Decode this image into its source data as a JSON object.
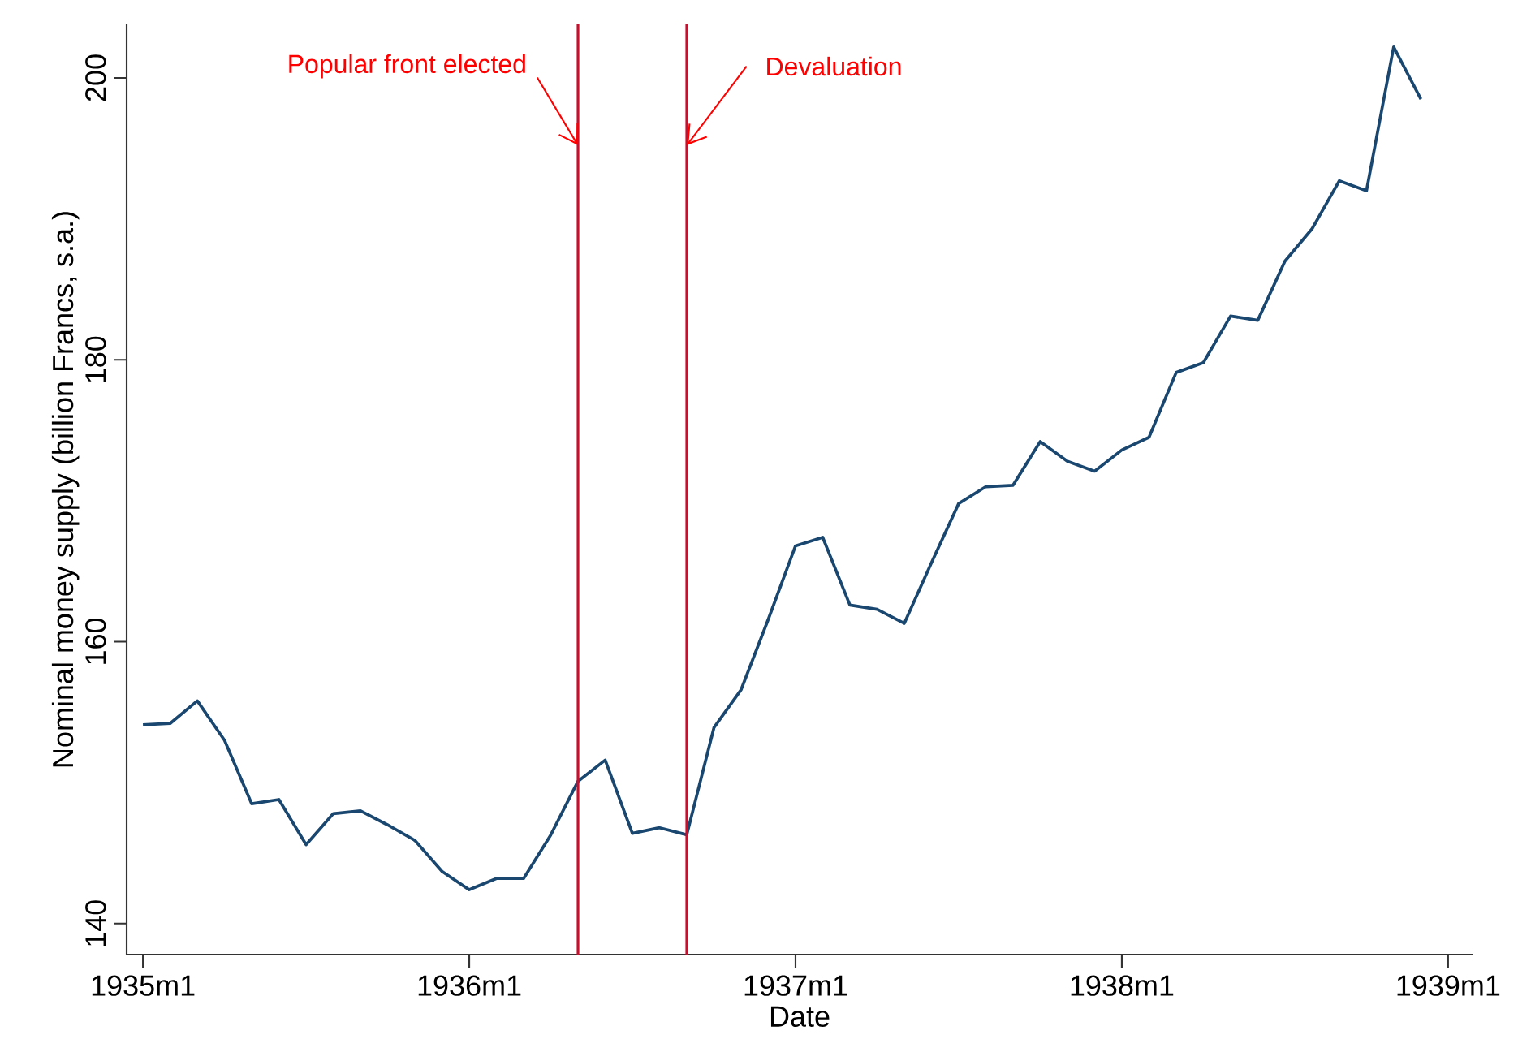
{
  "chart_data": {
    "type": "line",
    "xlabel": "Date",
    "ylabel": "Nominal money supply (billion Francs, s.a.)",
    "x": [
      "1935-01",
      "1935-02",
      "1935-03",
      "1935-04",
      "1935-05",
      "1935-06",
      "1935-07",
      "1935-08",
      "1935-09",
      "1935-10",
      "1935-11",
      "1935-12",
      "1936-01",
      "1936-02",
      "1936-03",
      "1936-04",
      "1936-05",
      "1936-06",
      "1936-07",
      "1936-08",
      "1936-09",
      "1936-10",
      "1936-11",
      "1936-12",
      "1937-01",
      "1937-02",
      "1937-03",
      "1937-04",
      "1937-05",
      "1937-06",
      "1937-07",
      "1937-08",
      "1937-09",
      "1937-10",
      "1937-11",
      "1937-12",
      "1938-01",
      "1938-02",
      "1938-03",
      "1938-04",
      "1938-05",
      "1938-06",
      "1938-07",
      "1938-08",
      "1938-09",
      "1938-10",
      "1938-11",
      "1938-12"
    ],
    "series": [
      {
        "color": "#1a476f",
        "values": [
          154.1,
          154.2,
          155.8,
          153.0,
          148.5,
          148.8,
          145.6,
          147.8,
          148.0,
          147.0,
          145.9,
          143.7,
          142.4,
          143.2,
          143.2,
          146.3,
          150.1,
          151.6,
          146.4,
          146.8,
          146.3,
          153.9,
          156.6,
          161.6,
          166.8,
          167.4,
          162.6,
          162.3,
          161.3,
          165.6,
          169.8,
          171.0,
          171.1,
          174.2,
          172.8,
          172.1,
          173.6,
          174.5,
          179.1,
          179.8,
          183.1,
          182.8,
          187.0,
          189.3,
          192.7,
          192.0,
          202.2,
          198.5
        ]
      }
    ],
    "xlim": [
      "1934-12-13",
      "1939-01-28"
    ],
    "ylim": [
      137.8,
      203.8
    ],
    "xticks": [
      {
        "value": "1935-01",
        "label": "1935m1"
      },
      {
        "value": "1936-01",
        "label": "1936m1"
      },
      {
        "value": "1937-01",
        "label": "1937m1"
      },
      {
        "value": "1938-01",
        "label": "1938m1"
      },
      {
        "value": "1939-01",
        "label": "1939m1"
      }
    ],
    "yticks": [
      140,
      160,
      180,
      200
    ],
    "ref_lines": [
      {
        "axis": "x",
        "value": "1936-05",
        "label": "Popular front elected",
        "color": "#c8102e"
      },
      {
        "axis": "x",
        "value": "1936-09",
        "label": "Devaluation",
        "color": "#c8102e"
      }
    ],
    "grid": false,
    "legend": false,
    "marker": "none",
    "line_style": "solid"
  }
}
